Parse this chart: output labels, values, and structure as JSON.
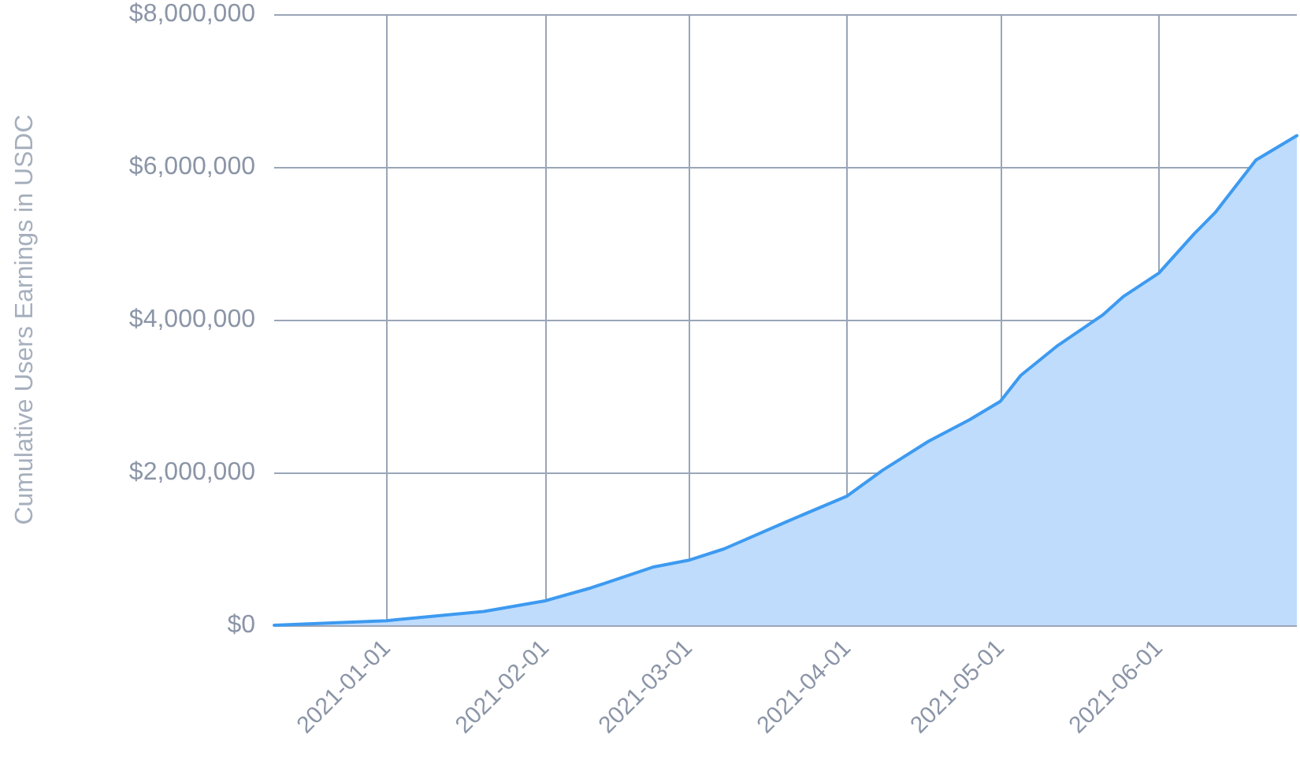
{
  "chart_data": {
    "type": "area",
    "ylabel": "Cumulative Users Earnings in USDC",
    "x": [
      "2020-12-10",
      "2021-01-01",
      "2021-01-20",
      "2021-02-01",
      "2021-02-10",
      "2021-02-22",
      "2021-03-01",
      "2021-03-08",
      "2021-03-20",
      "2021-04-01",
      "2021-04-08",
      "2021-04-17",
      "2021-04-25",
      "2021-05-01",
      "2021-05-05",
      "2021-05-12",
      "2021-05-21",
      "2021-05-25",
      "2021-06-01",
      "2021-06-08",
      "2021-06-12",
      "2021-06-20",
      "2021-06-28"
    ],
    "series": [
      {
        "color": "#3d9af0",
        "values": [
          0,
          60000,
          180000,
          320000,
          490000,
          760000,
          850000,
          1000000,
          1350000,
          1690000,
          2030000,
          2410000,
          2690000,
          2930000,
          3270000,
          3650000,
          4060000,
          4300000,
          4610000,
          5130000,
          5400000,
          6090000,
          6410000
        ]
      }
    ],
    "xlim": [
      "2020-12-10",
      "2021-06-28"
    ],
    "xticks": [
      "2021-01-01",
      "2021-02-01",
      "2021-03-01",
      "2021-04-01",
      "2021-05-01",
      "2021-06-01"
    ],
    "ylim": [
      0,
      8000000
    ],
    "yticks": [
      {
        "value": 0,
        "label": "$0"
      },
      {
        "value": 2000000,
        "label": "$2,000,000"
      },
      {
        "value": 4000000,
        "label": "$4,000,000"
      },
      {
        "value": 6000000,
        "label": "$6,000,000"
      },
      {
        "value": 8000000,
        "label": "$8,000,000"
      }
    ],
    "grid": true,
    "marker": "none",
    "line_style": "solid"
  }
}
